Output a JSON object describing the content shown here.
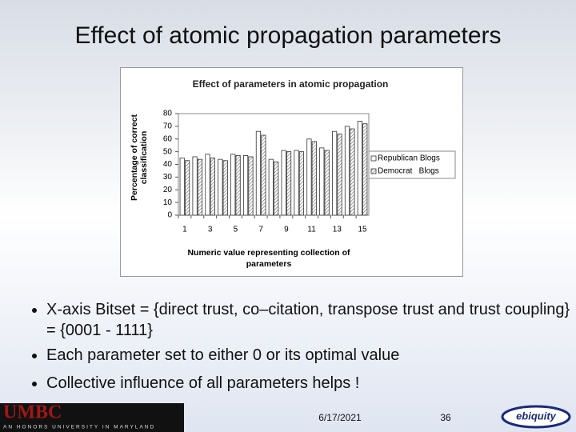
{
  "slide": {
    "title": "Effect of atomic propagation parameters",
    "bullets": [
      "X-axis Bitset = {direct trust, co–citation, transpose trust and trust coupling} = {0001 - 1111}",
      "Each parameter set to either 0 or its optimal value",
      "Collective influence of all parameters helps !"
    ],
    "footer": {
      "logo": "UMBC",
      "tagline": "AN HONORS UNIVERSITY IN MARYLAND",
      "date": "6/17/2021",
      "page": "36",
      "brand": "ebiquity"
    }
  },
  "chart_data": {
    "type": "bar",
    "title": "Effect of parameters in atomic propagation",
    "y_label": "Percentage of correct classification",
    "x_label": "Numeric value representing collection of parameters",
    "categories": [
      "1",
      null,
      "3",
      null,
      "5",
      null,
      "7",
      null,
      "9",
      null,
      "11",
      null,
      "13",
      null,
      "15"
    ],
    "series": [
      {
        "name": "Republican Blogs",
        "color": "#ffffff",
        "values": [
          45,
          46,
          48,
          44,
          48,
          47,
          66,
          44,
          51,
          51,
          60,
          53,
          66,
          70,
          74
        ]
      },
      {
        "name": "Democrat   Blogs",
        "color": "#666666",
        "values": [
          43,
          44,
          45,
          43,
          47,
          46,
          63,
          42,
          50,
          50,
          58,
          51,
          64,
          68,
          72
        ]
      }
    ],
    "ylim": [
      0,
      80
    ],
    "yticks": [
      0,
      10,
      20,
      30,
      40,
      50,
      60,
      70,
      80
    ],
    "legend": "right"
  }
}
